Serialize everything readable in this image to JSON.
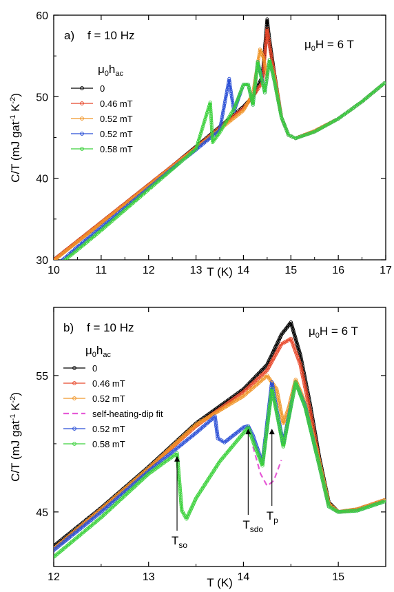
{
  "chart_data": [
    {
      "type": "line",
      "panel_label": "a)",
      "freq_text": "f = 10 Hz",
      "field_text": {
        "mu": "μ",
        "sub": "0",
        "rest": "H = 6 T"
      },
      "xlabel": "T (K)",
      "ylabel": {
        "main": "C/T (mJ gat",
        "sup1": "-1",
        "mid": " K",
        "sup2": "-2",
        "end": ")"
      },
      "xlim": [
        10,
        17
      ],
      "ylim": [
        30,
        60
      ],
      "xticks": [
        "10",
        "11",
        "12",
        "13",
        "14",
        "15",
        "16",
        "17"
      ],
      "yticks": [
        "30",
        "40",
        "50",
        "60"
      ],
      "legend_title": {
        "mu": "μ",
        "sub": "0",
        "rest": "h",
        "sub2": "ac"
      },
      "legend_position": "upper-left",
      "series": [
        {
          "name": "0",
          "color": "#000000",
          "points": [
            [
              10,
              30.0
            ],
            [
              10.5,
              32.3
            ],
            [
              11,
              34.6
            ],
            [
              11.5,
              36.9
            ],
            [
              12,
              39.2
            ],
            [
              12.5,
              41.5
            ],
            [
              13,
              43.9
            ],
            [
              13.5,
              46.3
            ],
            [
              14,
              48.8
            ],
            [
              14.2,
              50.0
            ],
            [
              14.4,
              52.5
            ],
            [
              14.5,
              59.5
            ],
            [
              14.55,
              57.0
            ],
            [
              14.65,
              53.0
            ],
            [
              14.8,
              47.5
            ],
            [
              14.95,
              45.3
            ],
            [
              15.1,
              44.9
            ],
            [
              15.5,
              45.8
            ],
            [
              16,
              47.3
            ],
            [
              16.5,
              49.4
            ],
            [
              17,
              51.8
            ]
          ]
        },
        {
          "name": "0.46 mT",
          "color": "#e8472a",
          "points": [
            [
              10,
              30.0
            ],
            [
              10.5,
              32.3
            ],
            [
              11,
              34.6
            ],
            [
              11.5,
              36.9
            ],
            [
              12,
              39.2
            ],
            [
              12.5,
              41.5
            ],
            [
              13,
              43.8
            ],
            [
              13.5,
              46.2
            ],
            [
              14,
              48.6
            ],
            [
              14.2,
              50.0
            ],
            [
              14.4,
              51.8
            ],
            [
              14.5,
              58.3
            ],
            [
              14.55,
              56.3
            ],
            [
              14.65,
              52.8
            ],
            [
              14.8,
              47.5
            ],
            [
              14.95,
              45.3
            ],
            [
              15.1,
              44.9
            ],
            [
              15.5,
              45.8
            ],
            [
              16,
              47.3
            ],
            [
              16.5,
              49.4
            ],
            [
              17,
              51.8
            ]
          ]
        },
        {
          "name": "0.52 mT",
          "color": "#f0962a",
          "points": [
            [
              10,
              29.9
            ],
            [
              10.5,
              32.2
            ],
            [
              11,
              34.5
            ],
            [
              11.5,
              36.8
            ],
            [
              12,
              39.1
            ],
            [
              12.5,
              41.4
            ],
            [
              13,
              43.7
            ],
            [
              13.5,
              46.0
            ],
            [
              14,
              48.3
            ],
            [
              14.2,
              50.4
            ],
            [
              14.35,
              55.8
            ],
            [
              14.42,
              54.8
            ],
            [
              14.5,
              52.5
            ],
            [
              14.55,
              54.5
            ],
            [
              14.65,
              52.5
            ],
            [
              14.8,
              47.5
            ],
            [
              14.95,
              45.3
            ],
            [
              15.1,
              44.9
            ],
            [
              15.5,
              45.8
            ],
            [
              16,
              47.3
            ],
            [
              16.5,
              49.4
            ],
            [
              17,
              51.8
            ]
          ]
        },
        {
          "name": "0.52 mT",
          "color": "#2a4fd6",
          "points": [
            [
              10.15,
              29.8
            ],
            [
              10.5,
              31.6
            ],
            [
              11,
              34.0
            ],
            [
              11.5,
              36.4
            ],
            [
              12,
              38.8
            ],
            [
              12.5,
              41.2
            ],
            [
              13,
              43.5
            ],
            [
              13.5,
              45.9
            ],
            [
              13.7,
              52.2
            ],
            [
              13.72,
              51.3
            ],
            [
              13.8,
              48.2
            ],
            [
              14.0,
              51.5
            ],
            [
              14.1,
              51.5
            ],
            [
              14.2,
              49.0
            ],
            [
              14.3,
              54.3
            ],
            [
              14.37,
              52.7
            ],
            [
              14.45,
              50.5
            ],
            [
              14.55,
              54.5
            ],
            [
              14.65,
              52.0
            ],
            [
              14.8,
              47.5
            ],
            [
              14.95,
              45.3
            ],
            [
              15.1,
              44.9
            ],
            [
              15.5,
              45.7
            ],
            [
              16,
              47.3
            ],
            [
              16.5,
              49.4
            ],
            [
              17,
              51.8
            ]
          ]
        },
        {
          "name": "0.58 mT",
          "color": "#3bd13b",
          "points": [
            [
              10.2,
              29.8
            ],
            [
              10.5,
              31.2
            ],
            [
              11,
              33.6
            ],
            [
              11.5,
              36.1
            ],
            [
              12,
              38.6
            ],
            [
              12.5,
              41.1
            ],
            [
              13,
              43.6
            ],
            [
              13.3,
              49.3
            ],
            [
              13.35,
              44.4
            ],
            [
              13.5,
              45.6
            ],
            [
              13.8,
              48.5
            ],
            [
              14.0,
              51.5
            ],
            [
              14.1,
              51.5
            ],
            [
              14.2,
              49.0
            ],
            [
              14.3,
              54.3
            ],
            [
              14.37,
              52.5
            ],
            [
              14.45,
              50.5
            ],
            [
              14.55,
              54.5
            ],
            [
              14.65,
              52.0
            ],
            [
              14.8,
              47.5
            ],
            [
              14.95,
              45.3
            ],
            [
              15.1,
              44.9
            ],
            [
              15.5,
              45.7
            ],
            [
              16,
              47.3
            ],
            [
              16.5,
              49.4
            ],
            [
              17,
              51.8
            ]
          ]
        }
      ]
    },
    {
      "type": "line",
      "panel_label": "b)",
      "freq_text": "f = 10 Hz",
      "field_text": {
        "mu": "μ",
        "sub": "0",
        "rest": "H = 6 T"
      },
      "xlabel": "T (K)",
      "ylabel": {
        "main": "C/T (mJ gat",
        "sup1": "-1",
        "mid": " K",
        "sup2": "-2",
        "end": ")"
      },
      "xlim": [
        12,
        15.5
      ],
      "ylim": [
        41,
        60
      ],
      "xticks": [
        "12",
        "13",
        "14",
        "15"
      ],
      "yticks": [
        "45",
        "55"
      ],
      "legend_title": {
        "mu": "μ",
        "sub": "0",
        "rest": "h",
        "sub2": "ac"
      },
      "legend_position": "upper-left",
      "legend_entries": [
        "0",
        "0.46 mT",
        "0.52 mT",
        "self-heating-dip fit",
        "0.52 mT",
        "0.58 mT"
      ],
      "annotations": [
        {
          "base": "T",
          "sub": "so",
          "x": 13.3,
          "y": 49.3
        },
        {
          "base": "T",
          "sub": "sdo",
          "x": 14.05,
          "y": 51.3
        },
        {
          "base": "T",
          "sub": "p",
          "x": 14.3,
          "y": 51.3
        }
      ],
      "series": [
        {
          "name": "0",
          "color": "#000000",
          "points": [
            [
              12,
              42.5
            ],
            [
              12.5,
              45.3
            ],
            [
              13,
              48.3
            ],
            [
              13.5,
              51.5
            ],
            [
              14,
              54.0
            ],
            [
              14.25,
              55.8
            ],
            [
              14.4,
              58.0
            ],
            [
              14.5,
              58.9
            ],
            [
              14.6,
              56.5
            ],
            [
              14.7,
              53.0
            ],
            [
              14.8,
              49.0
            ],
            [
              14.9,
              45.7
            ],
            [
              15,
              45.0
            ],
            [
              15.2,
              45.2
            ],
            [
              15.5,
              45.9
            ]
          ]
        },
        {
          "name": "0.46 mT",
          "color": "#e8472a",
          "points": [
            [
              12,
              42.3
            ],
            [
              12.5,
              45.2
            ],
            [
              13,
              48.2
            ],
            [
              13.5,
              51.3
            ],
            [
              14,
              53.8
            ],
            [
              14.25,
              55.4
            ],
            [
              14.4,
              57.3
            ],
            [
              14.5,
              57.7
            ],
            [
              14.6,
              55.8
            ],
            [
              14.7,
              52.5
            ],
            [
              14.8,
              48.7
            ],
            [
              14.9,
              45.6
            ],
            [
              15,
              45.0
            ],
            [
              15.2,
              45.2
            ],
            [
              15.5,
              45.9
            ]
          ]
        },
        {
          "name": "0.52 mT",
          "color": "#f0962a",
          "points": [
            [
              12,
              42.3
            ],
            [
              12.5,
              45.2
            ],
            [
              13,
              48.2
            ],
            [
              13.5,
              51.4
            ],
            [
              14,
              53.5
            ],
            [
              14.25,
              55.0
            ],
            [
              14.35,
              54.0
            ],
            [
              14.42,
              51.5
            ],
            [
              14.48,
              52.7
            ],
            [
              14.55,
              54.7
            ],
            [
              14.65,
              53.0
            ],
            [
              14.8,
              48.7
            ],
            [
              14.9,
              45.6
            ],
            [
              15,
              45.0
            ],
            [
              15.2,
              45.2
            ],
            [
              15.5,
              45.9
            ]
          ]
        },
        {
          "name": "self-heating-dip fit",
          "color": "#e65ad6",
          "dashed": true,
          "points": [
            [
              14.1,
              49.8
            ],
            [
              14.18,
              47.8
            ],
            [
              14.25,
              46.9
            ],
            [
              14.32,
              47.3
            ],
            [
              14.4,
              48.8
            ]
          ]
        },
        {
          "name": "0.52 mT",
          "color": "#2a4fd6",
          "points": [
            [
              12,
              42.2
            ],
            [
              12.5,
              45.0
            ],
            [
              13,
              48.0
            ],
            [
              13.5,
              50.8
            ],
            [
              13.7,
              52.0
            ],
            [
              13.73,
              50.4
            ],
            [
              13.8,
              50.1
            ],
            [
              14,
              51.2
            ],
            [
              14.05,
              51.3
            ],
            [
              14.1,
              50.6
            ],
            [
              14.2,
              48.6
            ],
            [
              14.3,
              54.5
            ],
            [
              14.35,
              52.5
            ],
            [
              14.42,
              50.0
            ],
            [
              14.55,
              54.5
            ],
            [
              14.65,
              52.8
            ],
            [
              14.8,
              48.4
            ],
            [
              14.9,
              45.4
            ],
            [
              15,
              45.0
            ],
            [
              15.2,
              45.1
            ],
            [
              15.5,
              45.8
            ]
          ]
        },
        {
          "name": "0.58 mT",
          "color": "#3bd13b",
          "points": [
            [
              12,
              41.7
            ],
            [
              12.5,
              44.6
            ],
            [
              13,
              47.8
            ],
            [
              13.3,
              49.3
            ],
            [
              13.35,
              45.1
            ],
            [
              13.4,
              44.5
            ],
            [
              13.5,
              46.0
            ],
            [
              13.75,
              48.7
            ],
            [
              14.05,
              51.2
            ],
            [
              14.1,
              50.2
            ],
            [
              14.2,
              48.4
            ],
            [
              14.3,
              54.0
            ],
            [
              14.35,
              52.3
            ],
            [
              14.42,
              49.8
            ],
            [
              14.55,
              54.5
            ],
            [
              14.65,
              52.7
            ],
            [
              14.8,
              48.4
            ],
            [
              14.9,
              45.4
            ],
            [
              15,
              45.0
            ],
            [
              15.2,
              45.1
            ],
            [
              15.5,
              45.8
            ]
          ]
        }
      ]
    }
  ]
}
